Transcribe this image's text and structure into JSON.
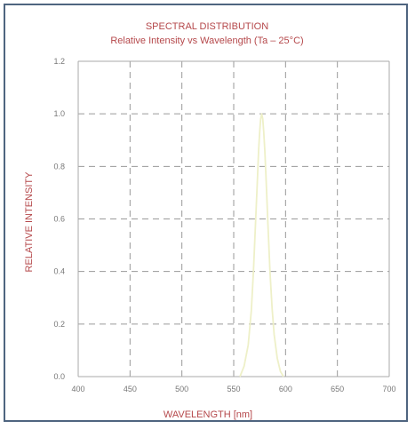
{
  "chart_data": {
    "type": "line",
    "title": "SPECTRAL DISTRIBUTION",
    "subtitle": "Relative Intensity vs Wavelength (Ta – 25°C)",
    "xlabel": "WAVELENGTH [nm]",
    "ylabel": "RELATIVE INTENSITY",
    "xlim": [
      400,
      700
    ],
    "ylim": [
      0,
      1.2
    ],
    "xticks": [
      "400",
      "450",
      "500",
      "550",
      "600",
      "650",
      "700"
    ],
    "yticks": [
      "0.0",
      "0.2",
      "0.4",
      "0.6",
      "0.8",
      "1.0",
      "1.2"
    ],
    "grid": true,
    "series": [
      {
        "color": "#eef0c8",
        "x": [
          556,
          560,
          564,
          567,
          569,
          571,
          573,
          574,
          575,
          576,
          577,
          578,
          579,
          580,
          581,
          583,
          585,
          587,
          589,
          592,
          595,
          598
        ],
        "y": [
          0.0,
          0.04,
          0.12,
          0.25,
          0.4,
          0.58,
          0.76,
          0.86,
          0.93,
          0.98,
          1.0,
          0.98,
          0.93,
          0.86,
          0.77,
          0.58,
          0.4,
          0.26,
          0.16,
          0.07,
          0.02,
          0.0
        ]
      }
    ]
  },
  "colors": {
    "border": "#4f6580",
    "title": "#b5484b",
    "grid": "#9a9a9a",
    "axis": "#aaaaaa",
    "tick_text": "#777777"
  }
}
